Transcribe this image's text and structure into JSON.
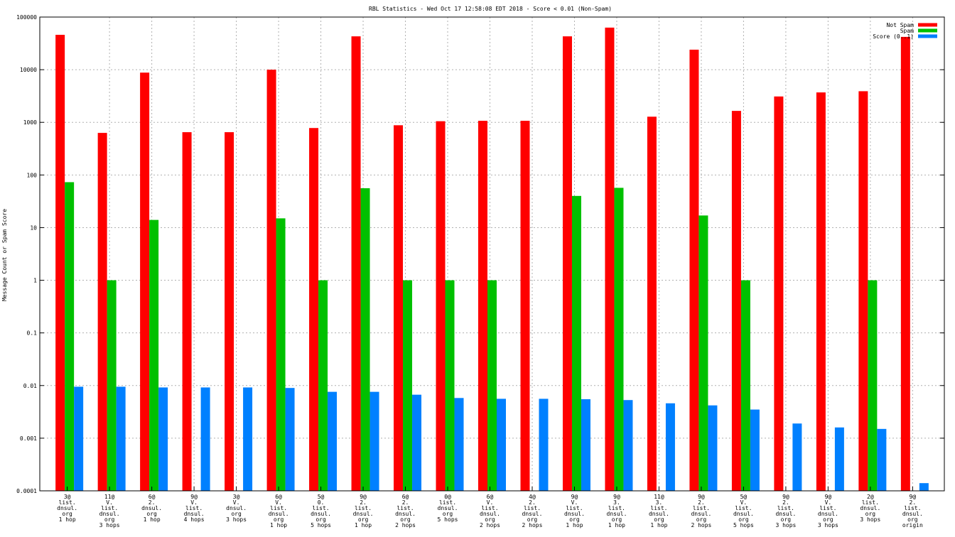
{
  "chart_data": {
    "type": "bar",
    "title": "RBL Statistics - Wed Oct 17 12:58:08 EDT 2018 - Score < 0.01 (Non-Spam)",
    "ylabel": "Message Count or Spam Score",
    "xlabel": "",
    "yscale": "log",
    "ylim": [
      0.0001,
      100000
    ],
    "yticks": [
      "0.0001",
      "0.001",
      "0.01",
      "0.1",
      "1",
      "10",
      "100",
      "1000",
      "10000",
      "100000"
    ],
    "grid": true,
    "legend_position": "top-right",
    "categories": [
      [
        "3@",
        "list.",
        "dnsul.",
        "org",
        "1 hop"
      ],
      [
        "11@",
        "V.",
        "list.",
        "dnsul.",
        "org",
        "3 hops"
      ],
      [
        "6@",
        "2.",
        "dnsul.",
        "org",
        "1 hop"
      ],
      [
        "9@",
        "V.",
        "list.",
        "dnsul.",
        "4 hops"
      ],
      [
        "3@",
        "V.",
        "dnsul.",
        "org",
        "3 hops"
      ],
      [
        "6@",
        "V.",
        "list.",
        "dnsul.",
        "org",
        "1 hop"
      ],
      [
        "5@",
        "0.",
        "list.",
        "dnsul.",
        "org",
        "5 hops"
      ],
      [
        "9@",
        "2.",
        "list.",
        "dnsul.",
        "org",
        "1 hop"
      ],
      [
        "6@",
        "2.",
        "list.",
        "dnsul.",
        "org",
        "2 hops"
      ],
      [
        "0@",
        "list.",
        "dnsul.",
        "org",
        "5 hops"
      ],
      [
        "6@",
        "V.",
        "list.",
        "dnsul.",
        "org",
        "2 hops"
      ],
      [
        "4@",
        "2.",
        "list.",
        "dnsul.",
        "org",
        "2 hops"
      ],
      [
        "9@",
        "V.",
        "list.",
        "dnsul.",
        "org",
        "1 hop"
      ],
      [
        "9@",
        "3.",
        "list.",
        "dnsul.",
        "org",
        "1 hop"
      ],
      [
        "11@",
        "3.",
        "list.",
        "dnsul.",
        "org",
        "1 hop"
      ],
      [
        "9@",
        "2.",
        "list.",
        "dnsul.",
        "org",
        "2 hops"
      ],
      [
        "5@",
        "V.",
        "list.",
        "dnsul.",
        "org",
        "5 hops"
      ],
      [
        "9@",
        "2.",
        "list.",
        "dnsul.",
        "org",
        "3 hops"
      ],
      [
        "9@",
        "V.",
        "list.",
        "dnsul.",
        "org",
        "3 hops"
      ],
      [
        "2@",
        "list.",
        "dnsul.",
        "org",
        "3 hops"
      ],
      [
        "9@",
        "2.",
        "list.",
        "dnsul.",
        "org",
        "origin"
      ]
    ],
    "series": [
      {
        "name": "Not Spam",
        "color": "#ff0000",
        "values": [
          46000,
          630,
          8800,
          650,
          650,
          10000,
          780,
          43000,
          880,
          1050,
          1070,
          1070,
          43000,
          63000,
          1280,
          24000,
          1650,
          3100,
          3700,
          3900,
          42000
        ]
      },
      {
        "name": "Spam",
        "color": "#00c000",
        "values": [
          73,
          1,
          14,
          null,
          null,
          15,
          1,
          56,
          1,
          1,
          1,
          null,
          40,
          57,
          null,
          17,
          1,
          null,
          null,
          1,
          null
        ]
      },
      {
        "name": "Score (0..1)",
        "color": "#0080ff",
        "values": [
          0.0095,
          0.0095,
          0.0092,
          0.0092,
          0.0092,
          0.009,
          0.0076,
          0.0076,
          0.0067,
          0.0058,
          0.0056,
          0.0056,
          0.0055,
          0.0053,
          0.0046,
          0.0042,
          0.0035,
          0.0019,
          0.0016,
          0.0015,
          0.00014
        ]
      }
    ]
  }
}
